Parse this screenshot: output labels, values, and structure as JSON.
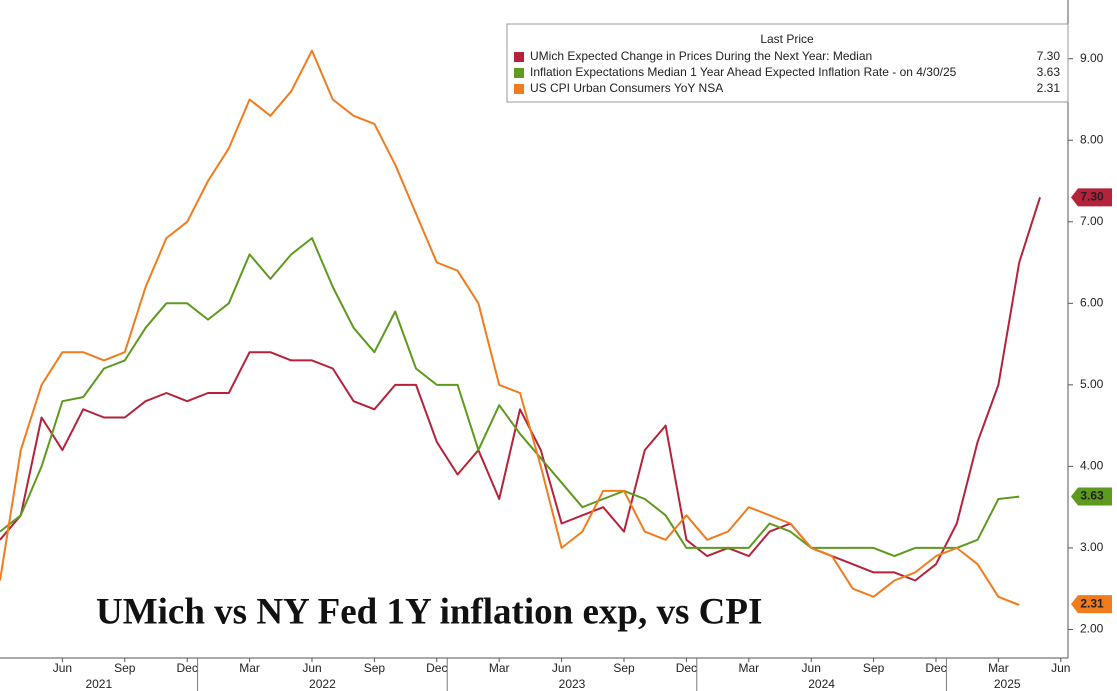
{
  "chart_data": {
    "type": "line",
    "title": "UMich vs NY Fed 1Y inflation exp, vs CPI",
    "legend_title": "Last Price",
    "categories": [
      null,
      null,
      null,
      "Jun",
      null,
      null,
      "Sep",
      null,
      null,
      "Dec",
      null,
      null,
      "Mar",
      null,
      null,
      "Jun",
      null,
      null,
      "Sep",
      null,
      null,
      "Dec",
      null,
      null,
      "Mar",
      null,
      null,
      "Jun",
      null,
      null,
      "Sep",
      null,
      null,
      "Dec",
      null,
      null,
      "Mar",
      null,
      null,
      "Jun",
      null,
      null,
      "Sep",
      null,
      null,
      "Dec",
      null,
      null,
      "Mar",
      null,
      null,
      "Jun"
    ],
    "years": [
      "2021",
      "2022",
      "2023",
      "2024",
      "2025"
    ],
    "series": [
      {
        "name": "UMich Expected Change in Prices During the Next Year: Median",
        "color": "#b5223a",
        "last": {
          "value": 7.3,
          "label": "7.30"
        },
        "values": [
          3.1,
          3.4,
          4.6,
          4.2,
          4.7,
          4.6,
          4.6,
          4.8,
          4.9,
          4.8,
          4.9,
          4.9,
          5.4,
          5.4,
          5.3,
          5.3,
          5.2,
          4.8,
          4.7,
          5.0,
          5.0,
          4.3,
          3.9,
          4.2,
          3.6,
          4.7,
          4.2,
          3.3,
          3.4,
          3.5,
          3.2,
          4.2,
          4.5,
          3.1,
          2.9,
          3.0,
          2.9,
          3.2,
          3.3,
          3.0,
          2.9,
          2.8,
          2.7,
          2.7,
          2.6,
          2.8,
          3.3,
          4.3,
          5.0,
          6.5,
          7.3,
          null
        ]
      },
      {
        "name": "Inflation Expectations Median 1 Year Ahead Expected Inflation Rate -   on 4/30/25",
        "color": "#5d9a1f",
        "last": {
          "value": 3.63,
          "label": "3.63"
        },
        "values": [
          3.2,
          3.4,
          4.0,
          4.8,
          4.85,
          5.2,
          5.3,
          5.7,
          6.0,
          6.0,
          5.8,
          6.0,
          6.6,
          6.3,
          6.6,
          6.8,
          6.2,
          5.7,
          5.4,
          5.9,
          5.2,
          5.0,
          5.0,
          4.2,
          4.75,
          4.4,
          4.1,
          3.8,
          3.5,
          3.6,
          3.7,
          3.6,
          3.4,
          3.0,
          3.0,
          3.0,
          3.0,
          3.3,
          3.2,
          3.0,
          3.0,
          3.0,
          3.0,
          2.9,
          3.0,
          3.0,
          3.0,
          3.1,
          3.6,
          3.63,
          null,
          null
        ]
      },
      {
        "name": "US CPI Urban Consumers YoY NSA",
        "color": "#f07c1e",
        "last": {
          "value": 2.31,
          "label": "2.31"
        },
        "values": [
          2.6,
          4.2,
          5.0,
          5.4,
          5.4,
          5.3,
          5.4,
          6.2,
          6.8,
          7.0,
          7.5,
          7.9,
          8.5,
          8.3,
          8.6,
          9.1,
          8.5,
          8.3,
          8.2,
          7.7,
          7.1,
          6.5,
          6.4,
          6.0,
          5.0,
          4.9,
          4.0,
          3.0,
          3.2,
          3.7,
          3.7,
          3.2,
          3.1,
          3.4,
          3.1,
          3.2,
          3.5,
          3.4,
          3.3,
          3.0,
          2.9,
          2.5,
          2.4,
          2.6,
          2.7,
          2.9,
          3.0,
          2.8,
          2.4,
          2.3,
          null,
          null
        ]
      }
    ],
    "ylim": [
      1.65,
      9.72
    ],
    "yticks": [
      {
        "value": 2,
        "label": "2.00"
      },
      {
        "value": 3,
        "label": "3.00"
      },
      {
        "value": 4,
        "label": "4.00"
      },
      {
        "value": 5,
        "label": "5.00"
      },
      {
        "value": 6,
        "label": "6.00"
      },
      {
        "value": 7,
        "label": "7.00"
      },
      {
        "value": 8,
        "label": "8.00"
      },
      {
        "value": 9,
        "label": "9.00"
      }
    ],
    "grid": false
  }
}
